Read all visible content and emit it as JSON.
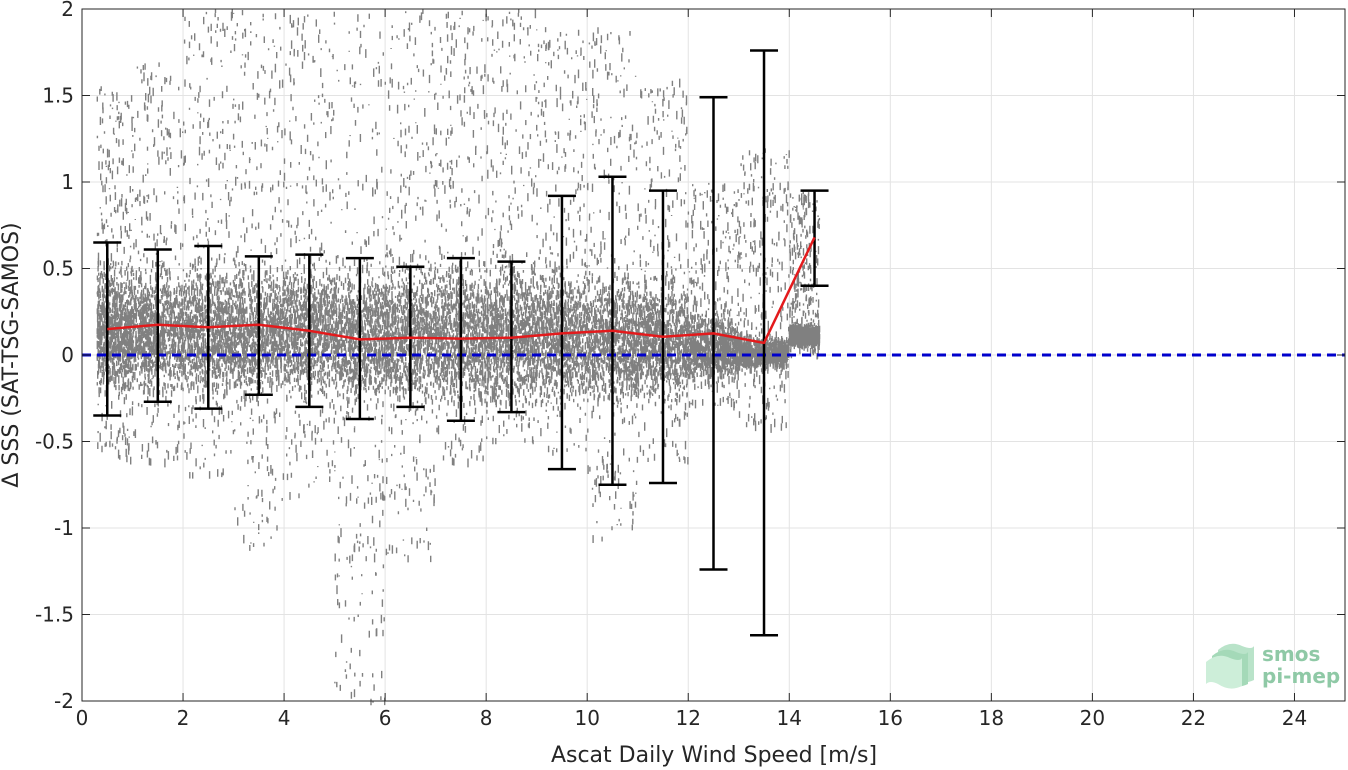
{
  "chart_data": {
    "type": "scatter",
    "title": "",
    "xlabel": "Ascat Daily Wind Speed [m/s]",
    "ylabel": "Δ SSS (SAT-TSG-SAMOS)",
    "xlim": [
      0,
      25
    ],
    "ylim": [
      -2,
      2
    ],
    "xticks": [
      "0",
      "2",
      "4",
      "6",
      "8",
      "10",
      "12",
      "14",
      "16",
      "18",
      "20",
      "22",
      "24"
    ],
    "yticks": [
      "-2",
      "-1.5",
      "-1",
      "-0.5",
      "0",
      "0.5",
      "1",
      "1.5",
      "2"
    ],
    "grid": true,
    "legend": "none",
    "colors": {
      "scatter": "#808080",
      "mean_line": "#e31a1c",
      "error_bars": "#000000",
      "zero_line": "#0000cc",
      "grid": "#e3e3e3",
      "axes": "#262626"
    },
    "series": [
      {
        "type": "line",
        "x": [
          0.5,
          1.5,
          2.5,
          3.5,
          4.5,
          5.5,
          6.5,
          7.5,
          8.5,
          9.5,
          10.5,
          11.5,
          12.5,
          13.5,
          14.5
        ],
        "y": [
          0.15,
          0.175,
          0.16,
          0.175,
          0.14,
          0.09,
          0.1,
          0.095,
          0.1,
          0.125,
          0.14,
          0.105,
          0.125,
          0.07,
          0.68
        ]
      },
      {
        "type": "errorbar",
        "x": [
          0.5,
          1.5,
          2.5,
          3.5,
          4.5,
          5.5,
          6.5,
          7.5,
          8.5,
          9.5,
          10.5,
          11.5,
          12.5,
          13.5,
          14.5
        ],
        "lower": [
          -0.35,
          -0.27,
          -0.31,
          -0.23,
          -0.3,
          -0.37,
          -0.3,
          -0.38,
          -0.33,
          -0.66,
          -0.75,
          -0.74,
          -1.24,
          -1.62,
          0.4
        ],
        "upper": [
          0.65,
          0.61,
          0.63,
          0.57,
          0.58,
          0.56,
          0.51,
          0.56,
          0.54,
          0.92,
          1.03,
          0.95,
          1.49,
          1.76,
          0.95
        ]
      },
      {
        "type": "hline",
        "y": 0
      },
      {
        "type": "scatter",
        "bins": [
          {
            "x": [
              0.3,
              1.0
            ],
            "core": [
              -0.3,
              0.6
            ],
            "spread": [
              -0.6,
              1.6
            ]
          },
          {
            "x": [
              1.0,
              2.0
            ],
            "core": [
              -0.3,
              0.6
            ],
            "spread": [
              -0.6,
              1.7
            ]
          },
          {
            "x": [
              2.0,
              3.0
            ],
            "core": [
              -0.35,
              0.65
            ],
            "spread": [
              -0.7,
              2.0
            ]
          },
          {
            "x": [
              3.0,
              4.0
            ],
            "core": [
              -0.35,
              0.65
            ],
            "spread": [
              -1.1,
              2.0
            ]
          },
          {
            "x": [
              4.0,
              5.0
            ],
            "core": [
              -0.35,
              0.65
            ],
            "spread": [
              -0.8,
              2.0
            ]
          },
          {
            "x": [
              5.0,
              6.0
            ],
            "core": [
              -0.4,
              0.65
            ],
            "spread": [
              -2.0,
              2.0
            ]
          },
          {
            "x": [
              6.0,
              7.0
            ],
            "core": [
              -0.4,
              0.65
            ],
            "spread": [
              -1.2,
              2.0
            ]
          },
          {
            "x": [
              7.0,
              8.0
            ],
            "core": [
              -0.4,
              0.65
            ],
            "spread": [
              -0.6,
              2.0
            ]
          },
          {
            "x": [
              8.0,
              9.0
            ],
            "core": [
              -0.4,
              0.65
            ],
            "spread": [
              -0.5,
              2.0
            ]
          },
          {
            "x": [
              9.0,
              10.0
            ],
            "core": [
              -0.4,
              0.65
            ],
            "spread": [
              -0.55,
              1.9
            ]
          },
          {
            "x": [
              10.0,
              11.0
            ],
            "core": [
              -0.4,
              0.6
            ],
            "spread": [
              -1.05,
              1.9
            ]
          },
          {
            "x": [
              11.0,
              12.0
            ],
            "core": [
              -0.35,
              0.55
            ],
            "spread": [
              -0.6,
              1.6
            ]
          },
          {
            "x": [
              12.0,
              13.0
            ],
            "core": [
              -0.2,
              0.3
            ],
            "spread": [
              -0.3,
              1.0
            ]
          },
          {
            "x": [
              13.0,
              14.0
            ],
            "core": [
              -0.1,
              0.15
            ],
            "spread": [
              -0.4,
              1.2
            ]
          },
          {
            "x": [
              14.0,
              14.6
            ],
            "core": [
              0.05,
              0.2
            ],
            "spread": [
              0.0,
              0.95
            ]
          }
        ]
      }
    ]
  },
  "logo": {
    "line1": "smos",
    "line2": "pi-mep"
  }
}
